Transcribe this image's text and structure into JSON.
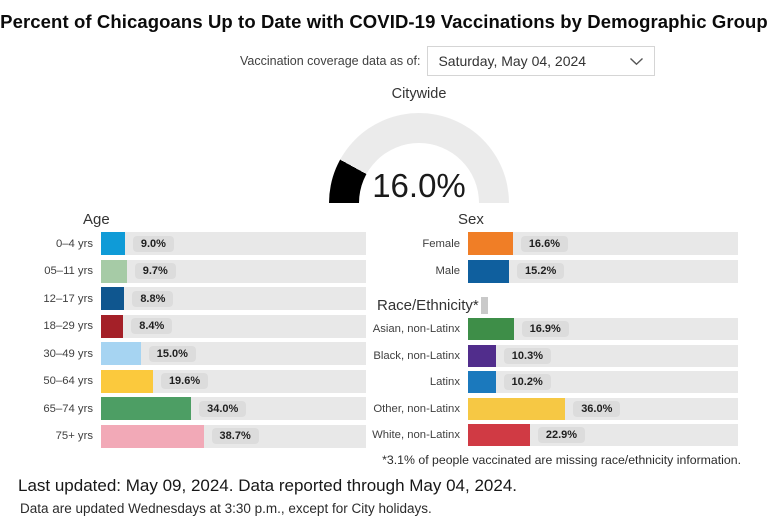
{
  "title": "Percent of Chicagoans Up to Date with COVID-19 Vaccinations by Demographic Group",
  "filter": {
    "label": "Vaccination coverage data as of:",
    "selected": "Saturday, May 04, 2024",
    "chevron_icon": "chevron-down"
  },
  "gauge": {
    "title": "Citywide",
    "value": 16.0,
    "value_label": "16.0%",
    "min": 0,
    "max": 100,
    "fill_color": "#000000",
    "track_color": "#ebebeb"
  },
  "chart_data": [
    {
      "type": "bar",
      "id": "age",
      "title": "Age",
      "orientation": "horizontal",
      "xlim": [
        0,
        100
      ],
      "categories": [
        "0–4 yrs",
        "05–11 yrs",
        "12–17 yrs",
        "18–29 yrs",
        "30–49 yrs",
        "50–64 yrs",
        "65–74 yrs",
        "75+ yrs"
      ],
      "values": [
        9.0,
        9.7,
        8.8,
        8.4,
        15.0,
        19.6,
        34.0,
        38.7
      ],
      "labels": [
        "9.0%",
        "9.7%",
        "8.8%",
        "8.4%",
        "15.0%",
        "19.6%",
        "34.0%",
        "38.7%"
      ],
      "colors": [
        "#0f9bd7",
        "#a6cba6",
        "#0f568f",
        "#a42028",
        "#a6d4f2",
        "#fbc93d",
        "#4d9e64",
        "#f2a9b7"
      ]
    },
    {
      "type": "bar",
      "id": "sex",
      "title": "Sex",
      "orientation": "horizontal",
      "xlim": [
        0,
        100
      ],
      "categories": [
        "Female",
        "Male"
      ],
      "values": [
        16.6,
        15.2
      ],
      "labels": [
        "16.6%",
        "15.2%"
      ],
      "colors": [
        "#f07e26",
        "#0f5f9e"
      ]
    },
    {
      "type": "bar",
      "id": "race",
      "title": "Race/Ethnicity*",
      "orientation": "horizontal",
      "xlim": [
        0,
        100
      ],
      "categories": [
        "Asian, non-Latinx",
        "Black, non-Latinx",
        "Latinx",
        "Other, non-Latinx",
        "White, non-Latinx"
      ],
      "values": [
        16.9,
        10.3,
        10.2,
        36.0,
        22.9
      ],
      "labels": [
        "16.9%",
        "10.3%",
        "10.2%",
        "36.0%",
        "22.9%"
      ],
      "colors": [
        "#3e8e48",
        "#512d8c",
        "#1b79bd",
        "#f6c844",
        "#d03a44"
      ]
    }
  ],
  "footnote": "*3.1% of people vaccinated are missing race/ethnicity information.",
  "footer": {
    "last_updated": "Last updated: May 09, 2024. Data reported through May 04, 2024.",
    "update_schedule": "Data are updated Wednesdays at 3:30 p.m., except for City holidays."
  }
}
